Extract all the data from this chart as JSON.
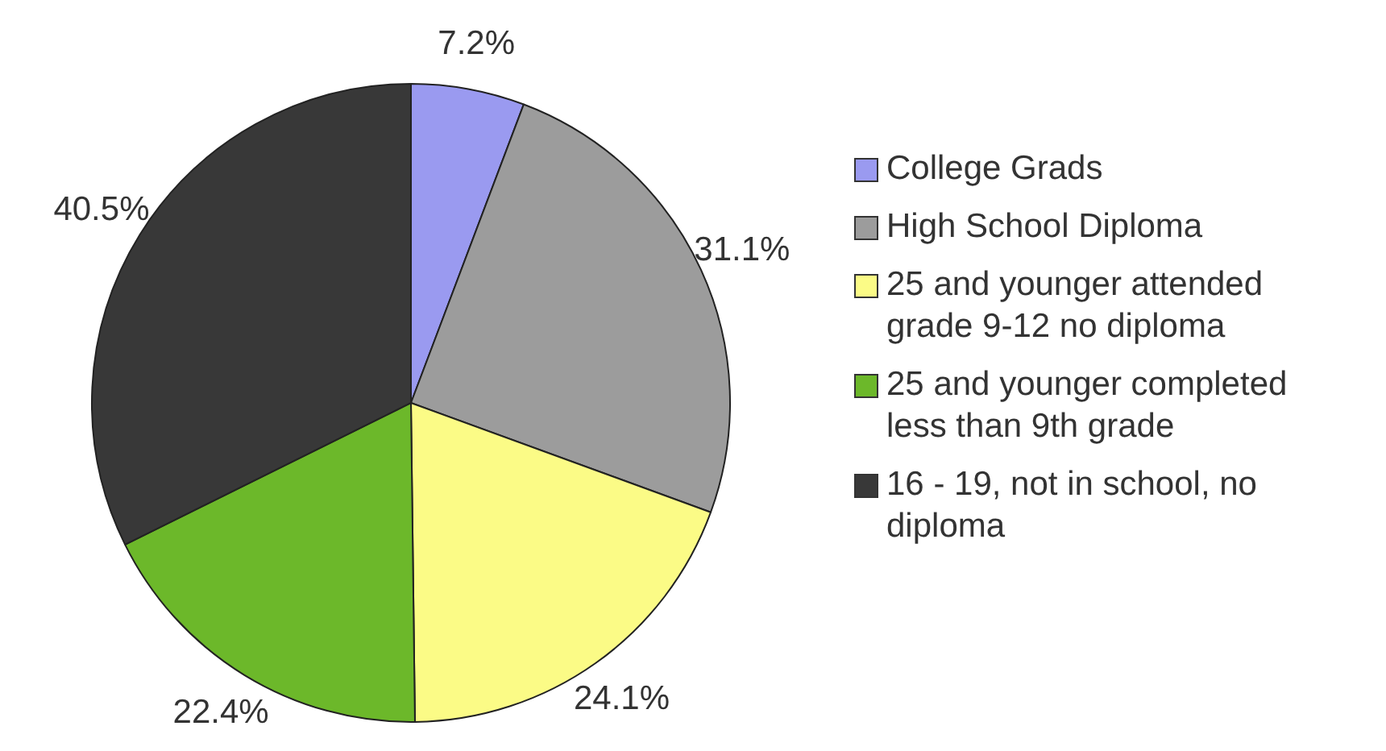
{
  "chart_data": {
    "type": "pie",
    "categories": [
      "College Grads",
      "High School Diploma",
      "25 and younger attended grade 9-12 no diploma",
      "25 and younger completed less than 9th grade",
      "16 - 19, not in school, no diploma"
    ],
    "values": [
      7.2,
      31.1,
      24.1,
      22.4,
      40.5
    ],
    "value_labels": [
      "7.2%",
      "31.1%",
      "24.1%",
      "22.4%",
      "40.5%"
    ],
    "colors": [
      "#9a9af0",
      "#9c9c9c",
      "#fbfb86",
      "#6cb82a",
      "#383838"
    ],
    "legend": "right"
  }
}
